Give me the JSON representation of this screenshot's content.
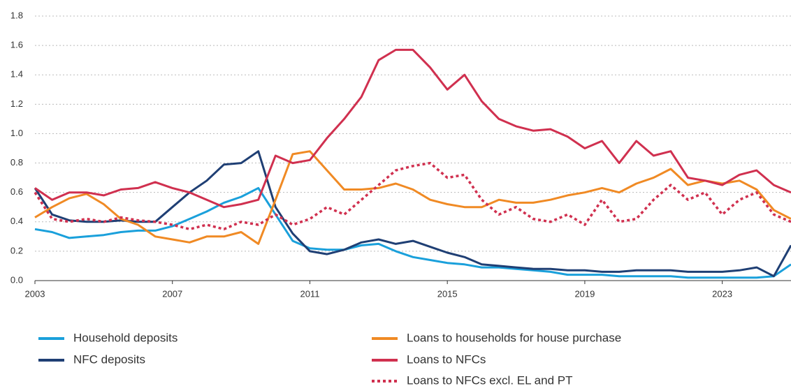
{
  "chart_data": {
    "type": "line",
    "x": [
      2003,
      2003.5,
      2004,
      2004.5,
      2005,
      2005.5,
      2006,
      2006.5,
      2007,
      2007.5,
      2008,
      2008.5,
      2009,
      2009.5,
      2010,
      2010.5,
      2011,
      2011.5,
      2012,
      2012.5,
      2013,
      2013.5,
      2014,
      2014.5,
      2015,
      2015.5,
      2016,
      2016.5,
      2017,
      2017.5,
      2018,
      2018.5,
      2019,
      2019.5,
      2020,
      2020.5,
      2021,
      2021.5,
      2022,
      2022.5,
      2023,
      2023.5,
      2024,
      2024.5,
      2025
    ],
    "series": [
      {
        "name": "Household deposits",
        "color": "#1aa0db",
        "style": "solid",
        "values": [
          0.35,
          0.33,
          0.29,
          0.3,
          0.31,
          0.33,
          0.34,
          0.34,
          0.37,
          0.42,
          0.47,
          0.53,
          0.57,
          0.63,
          0.45,
          0.27,
          0.22,
          0.21,
          0.21,
          0.24,
          0.25,
          0.2,
          0.16,
          0.14,
          0.12,
          0.11,
          0.09,
          0.09,
          0.08,
          0.07,
          0.06,
          0.04,
          0.04,
          0.04,
          0.03,
          0.03,
          0.03,
          0.03,
          0.02,
          0.02,
          0.02,
          0.02,
          0.02,
          0.03,
          0.11
        ]
      },
      {
        "name": "NFC deposits",
        "color": "#1f3f74",
        "style": "solid",
        "values": [
          0.63,
          0.45,
          0.41,
          0.4,
          0.4,
          0.41,
          0.4,
          0.4,
          0.5,
          0.6,
          0.68,
          0.79,
          0.8,
          0.88,
          0.5,
          0.32,
          0.2,
          0.18,
          0.21,
          0.26,
          0.28,
          0.25,
          0.27,
          0.23,
          0.19,
          0.16,
          0.11,
          0.1,
          0.09,
          0.08,
          0.08,
          0.07,
          0.07,
          0.06,
          0.06,
          0.07,
          0.07,
          0.07,
          0.06,
          0.06,
          0.06,
          0.07,
          0.09,
          0.03,
          0.24
        ]
      },
      {
        "name": "Loans to households for house purchase",
        "color": "#f08a24",
        "style": "solid",
        "values": [
          0.43,
          0.5,
          0.56,
          0.59,
          0.52,
          0.42,
          0.38,
          0.3,
          0.28,
          0.26,
          0.3,
          0.3,
          0.33,
          0.25,
          0.55,
          0.86,
          0.88,
          0.75,
          0.62,
          0.62,
          0.63,
          0.66,
          0.62,
          0.55,
          0.52,
          0.5,
          0.5,
          0.55,
          0.53,
          0.53,
          0.55,
          0.58,
          0.6,
          0.63,
          0.6,
          0.66,
          0.7,
          0.76,
          0.65,
          0.68,
          0.66,
          0.68,
          0.62,
          0.48,
          0.42
        ]
      },
      {
        "name": "Loans to NFCs",
        "color": "#d0304f",
        "style": "solid",
        "values": [
          0.63,
          0.55,
          0.6,
          0.6,
          0.58,
          0.62,
          0.63,
          0.67,
          0.63,
          0.6,
          0.55,
          0.5,
          0.52,
          0.55,
          0.85,
          0.8,
          0.82,
          0.97,
          1.1,
          1.25,
          1.5,
          1.57,
          1.57,
          1.45,
          1.3,
          1.4,
          1.22,
          1.1,
          1.05,
          1.02,
          1.03,
          0.98,
          0.9,
          0.95,
          0.8,
          0.95,
          0.85,
          0.88,
          0.7,
          0.68,
          0.65,
          0.72,
          0.75,
          0.65,
          0.6
        ]
      },
      {
        "name": "Loans to NFCs excl. EL and PT",
        "color": "#d0304f",
        "style": "dotted",
        "values": [
          0.6,
          0.42,
          0.4,
          0.42,
          0.4,
          0.43,
          0.41,
          0.4,
          0.38,
          0.35,
          0.38,
          0.35,
          0.4,
          0.38,
          0.45,
          0.38,
          0.42,
          0.5,
          0.45,
          0.55,
          0.65,
          0.75,
          0.78,
          0.8,
          0.7,
          0.72,
          0.55,
          0.45,
          0.5,
          0.42,
          0.4,
          0.45,
          0.38,
          0.55,
          0.4,
          0.42,
          0.55,
          0.65,
          0.55,
          0.6,
          0.45,
          0.55,
          0.6,
          0.45,
          0.4
        ]
      }
    ],
    "xlim": [
      2003,
      2025
    ],
    "xticks": [
      2003,
      2007,
      2011,
      2015,
      2019,
      2023
    ],
    "ylim": [
      0,
      1.8
    ],
    "yticks": [
      {
        "value": 0,
        "label": "0.0"
      },
      0.2,
      0.4,
      0.6,
      0.8,
      {
        "value": 1,
        "label": "1.0"
      },
      1.2,
      1.4,
      1.6,
      1.8
    ],
    "grid": true
  }
}
